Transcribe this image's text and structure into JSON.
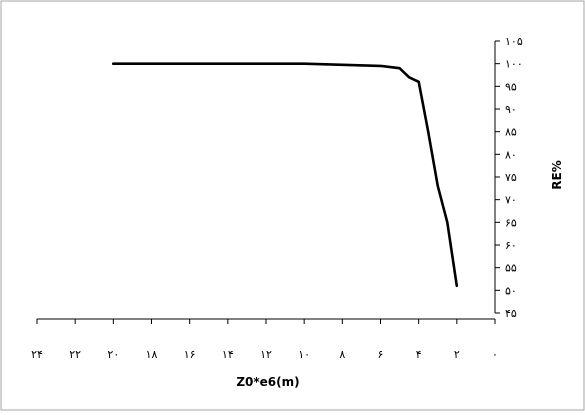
{
  "chart_data": {
    "type": "line",
    "title": "",
    "xlabel": "Z0*e6(m)",
    "ylabel": "RE%",
    "x_reversed": true,
    "xlim": [
      0,
      24
    ],
    "ylim": [
      45,
      105
    ],
    "x_ticks": [
      {
        "value": 24,
        "label": "۲۴"
      },
      {
        "value": 22,
        "label": "۲۲"
      },
      {
        "value": 20,
        "label": "۲۰"
      },
      {
        "value": 18,
        "label": "۱۸"
      },
      {
        "value": 16,
        "label": "۱۶"
      },
      {
        "value": 14,
        "label": "۱۴"
      },
      {
        "value": 12,
        "label": "۱۲"
      },
      {
        "value": 10,
        "label": "۱۰"
      },
      {
        "value": 8,
        "label": "۸"
      },
      {
        "value": 6,
        "label": "۶"
      },
      {
        "value": 4,
        "label": "۴"
      },
      {
        "value": 2,
        "label": "۲"
      },
      {
        "value": 0,
        "label": "۰"
      }
    ],
    "y_ticks": [
      {
        "value": 105,
        "label": "۱۰۵"
      },
      {
        "value": 100,
        "label": "۱۰۰"
      },
      {
        "value": 95,
        "label": "۹۵"
      },
      {
        "value": 90,
        "label": "۹۰"
      },
      {
        "value": 85,
        "label": "۸۵"
      },
      {
        "value": 80,
        "label": "۸۰"
      },
      {
        "value": 75,
        "label": "۷۵"
      },
      {
        "value": 70,
        "label": "۷۰"
      },
      {
        "value": 65,
        "label": "۶۵"
      },
      {
        "value": 60,
        "label": "۶۰"
      },
      {
        "value": 55,
        "label": "۵۵"
      },
      {
        "value": 50,
        "label": "۵۰"
      },
      {
        "value": 45,
        "label": "۴۵"
      }
    ],
    "series": [
      {
        "x": [
          20,
          10,
          6,
          5,
          4.5,
          4,
          3.5,
          3,
          2.5,
          2
        ],
        "y": [
          100,
          100,
          99.5,
          99,
          97,
          96,
          85,
          73,
          65,
          51
        ]
      }
    ],
    "grid": false,
    "legend": "none",
    "line_color": "#000000",
    "frame_color": "#a6a6a6"
  }
}
